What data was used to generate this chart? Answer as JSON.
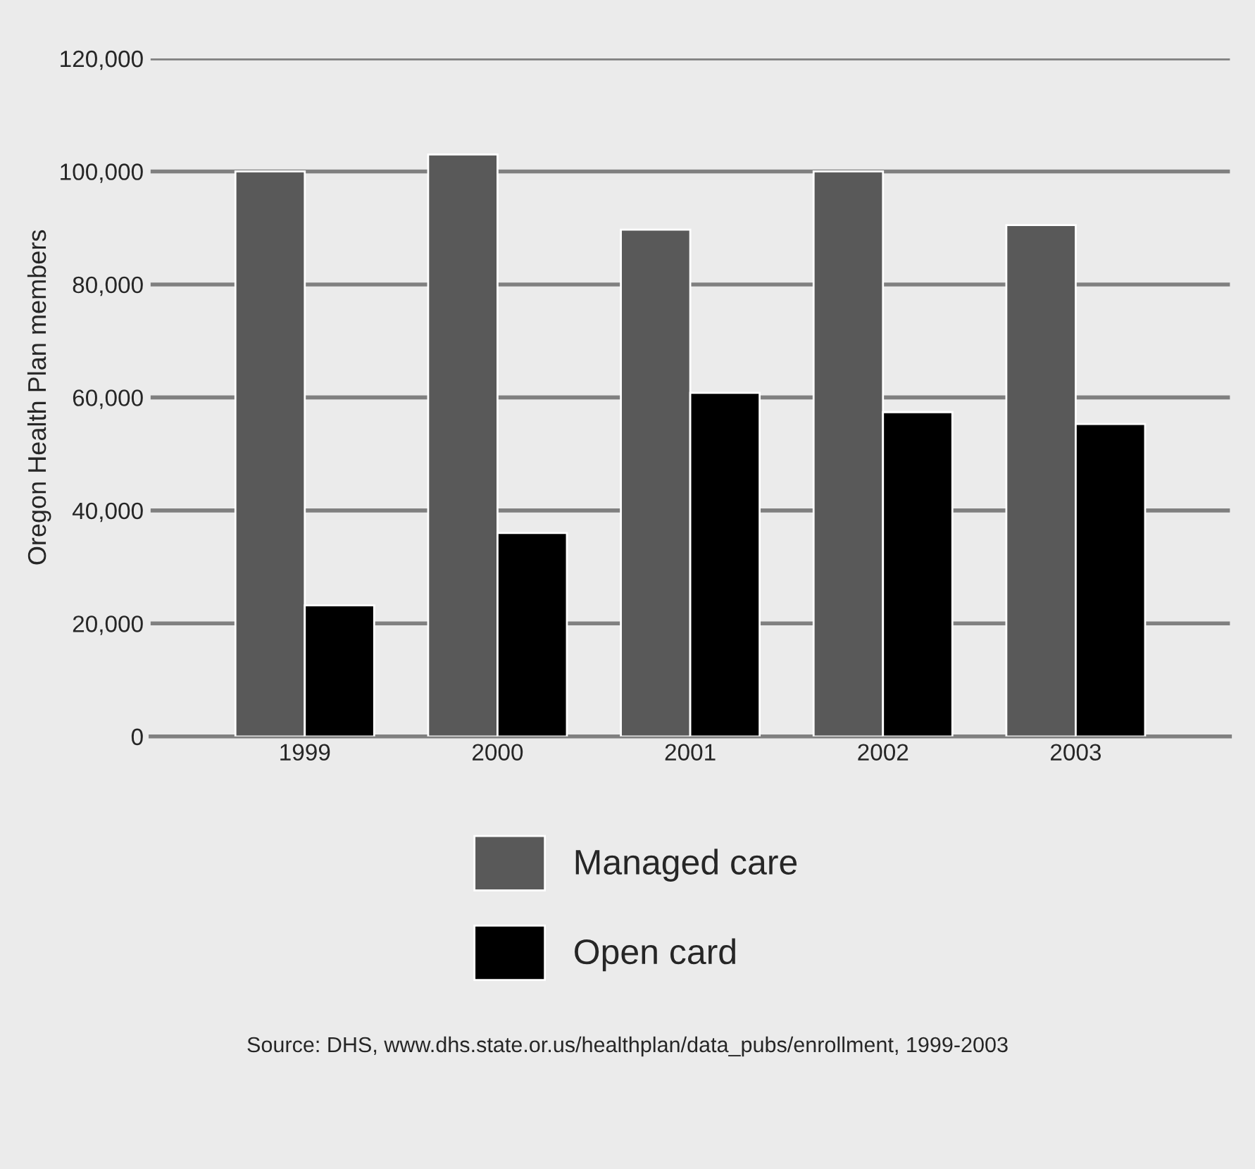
{
  "chart_data": {
    "type": "bar",
    "ylabel": "Oregon Health Plan members",
    "categories": [
      "1999",
      "2000",
      "2001",
      "2002",
      "2003"
    ],
    "series": [
      {
        "name": "Managed care",
        "color": "#595959",
        "values": [
          100000,
          103000,
          89700,
          100000,
          90500
        ]
      },
      {
        "name": "Open card",
        "color": "#000000",
        "values": [
          23200,
          36000,
          60800,
          57400,
          55300
        ]
      }
    ],
    "ylim": [
      0,
      120000
    ],
    "yticks": [
      {
        "value": 0,
        "label": "0"
      },
      {
        "value": 20000,
        "label": "20,000"
      },
      {
        "value": 40000,
        "label": "40,000"
      },
      {
        "value": 60000,
        "label": "60,000"
      },
      {
        "value": 80000,
        "label": "80,000"
      },
      {
        "value": 100000,
        "label": "100,000"
      },
      {
        "value": 120000,
        "label": "120,000"
      }
    ],
    "grid": "y",
    "legend": "bottom",
    "annotations": [
      "Source: DHS, www.dhs.state.or.us/healthplan/data_pubs/enrollment, 1999-2003"
    ]
  }
}
